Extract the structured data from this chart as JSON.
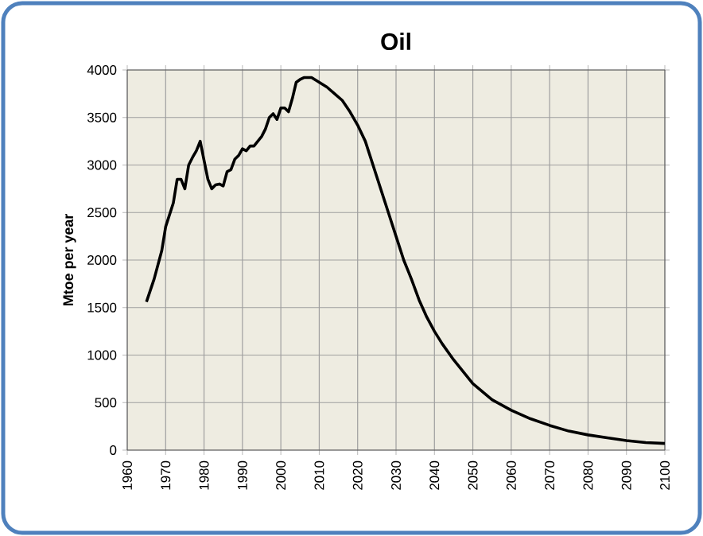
{
  "chart_data": {
    "type": "line",
    "title": "Oil",
    "ylabel": "Mtoe per year",
    "x": [
      1965,
      1967,
      1969,
      1970,
      1972,
      1973,
      1974,
      1975,
      1976,
      1977,
      1978,
      1979,
      1980,
      1981,
      1982,
      1983,
      1984,
      1985,
      1986,
      1987,
      1988,
      1989,
      1990,
      1991,
      1992,
      1993,
      1994,
      1995,
      1996,
      1997,
      1998,
      1999,
      2000,
      2001,
      2002,
      2003,
      2004,
      2005,
      2006,
      2007,
      2008,
      2010,
      2012,
      2014,
      2016,
      2018,
      2020,
      2022,
      2024,
      2026,
      2028,
      2030,
      2032,
      2034,
      2036,
      2038,
      2040,
      2042,
      2045,
      2048,
      2050,
      2055,
      2060,
      2065,
      2070,
      2075,
      2080,
      2085,
      2090,
      2095,
      2100
    ],
    "series": [
      {
        "color": "#000000",
        "values": [
          1560,
          1800,
          2100,
          2350,
          2600,
          2850,
          2850,
          2750,
          3000,
          3080,
          3150,
          3250,
          3050,
          2850,
          2750,
          2790,
          2800,
          2780,
          2930,
          2950,
          3060,
          3100,
          3170,
          3150,
          3200,
          3200,
          3250,
          3300,
          3380,
          3500,
          3540,
          3480,
          3600,
          3600,
          3560,
          3700,
          3870,
          3900,
          3920,
          3920,
          3920,
          3870,
          3820,
          3750,
          3680,
          3560,
          3420,
          3250,
          3000,
          2750,
          2500,
          2250,
          2000,
          1800,
          1580,
          1400,
          1250,
          1120,
          950,
          800,
          700,
          530,
          420,
          330,
          260,
          200,
          160,
          130,
          100,
          80,
          70
        ]
      }
    ],
    "xlim": [
      1960,
      2100
    ],
    "xticks": [
      1960,
      1970,
      1980,
      1990,
      2000,
      2010,
      2020,
      2030,
      2040,
      2050,
      2060,
      2070,
      2080,
      2090,
      2100
    ],
    "ylim": [
      0,
      4000
    ],
    "yticks": [
      0,
      500,
      1000,
      1500,
      2000,
      2500,
      3000,
      3500,
      4000
    ],
    "grid": true,
    "legend": false,
    "marker": "none",
    "line_style": "solid"
  }
}
